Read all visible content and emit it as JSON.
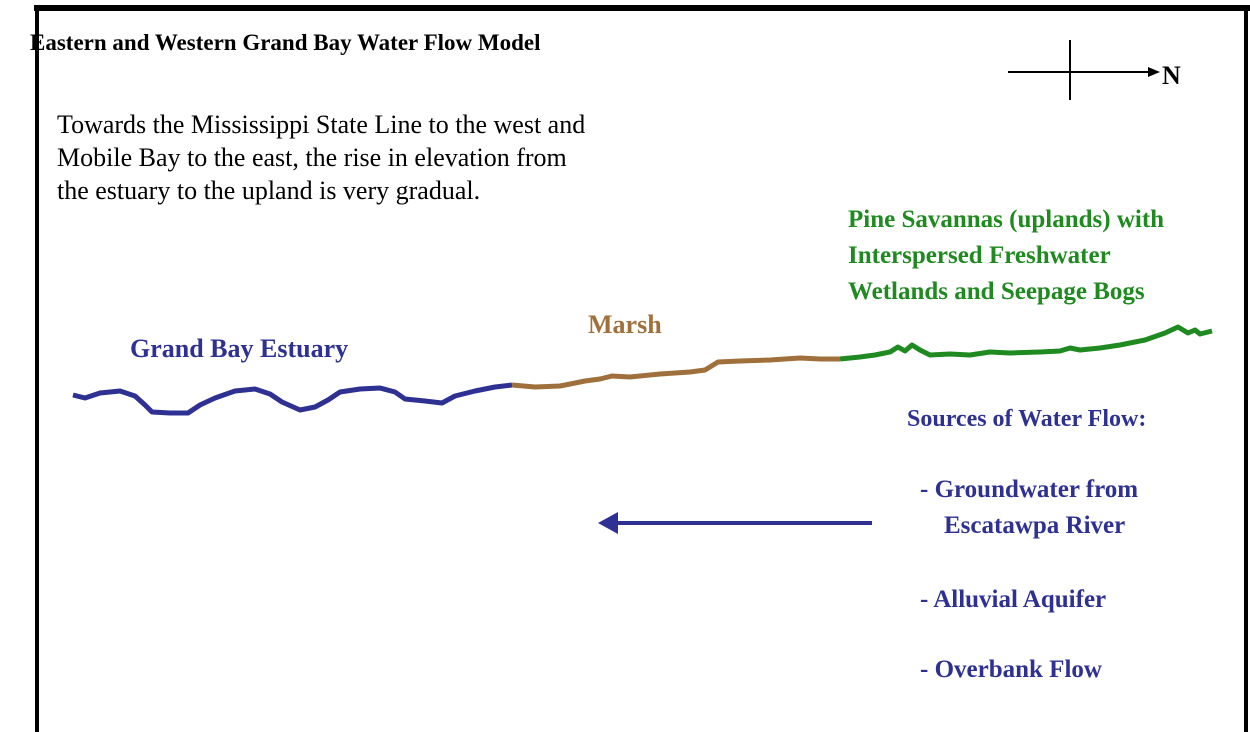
{
  "title": "Eastern and Western Grand Bay Water Flow Model",
  "compass": "N",
  "description": [
    "Towards the Mississippi State Line to the west and",
    "Mobile Bay to the east, the rise in elevation from",
    "the estuary to the upland is very gradual."
  ],
  "zones": {
    "estuary": "Grand Bay Estuary",
    "marsh": "Marsh",
    "uplands": [
      "Pine Savannas (uplands) with",
      "Interspersed Freshwater",
      "Wetlands and Seepage Bogs"
    ]
  },
  "sources": {
    "heading": "Sources of Water Flow:",
    "items": [
      [
        "- Groundwater from",
        "Escatawpa River"
      ],
      [
        "- Alluvial Aquifer"
      ],
      [
        "- Overbank Flow"
      ]
    ]
  }
}
